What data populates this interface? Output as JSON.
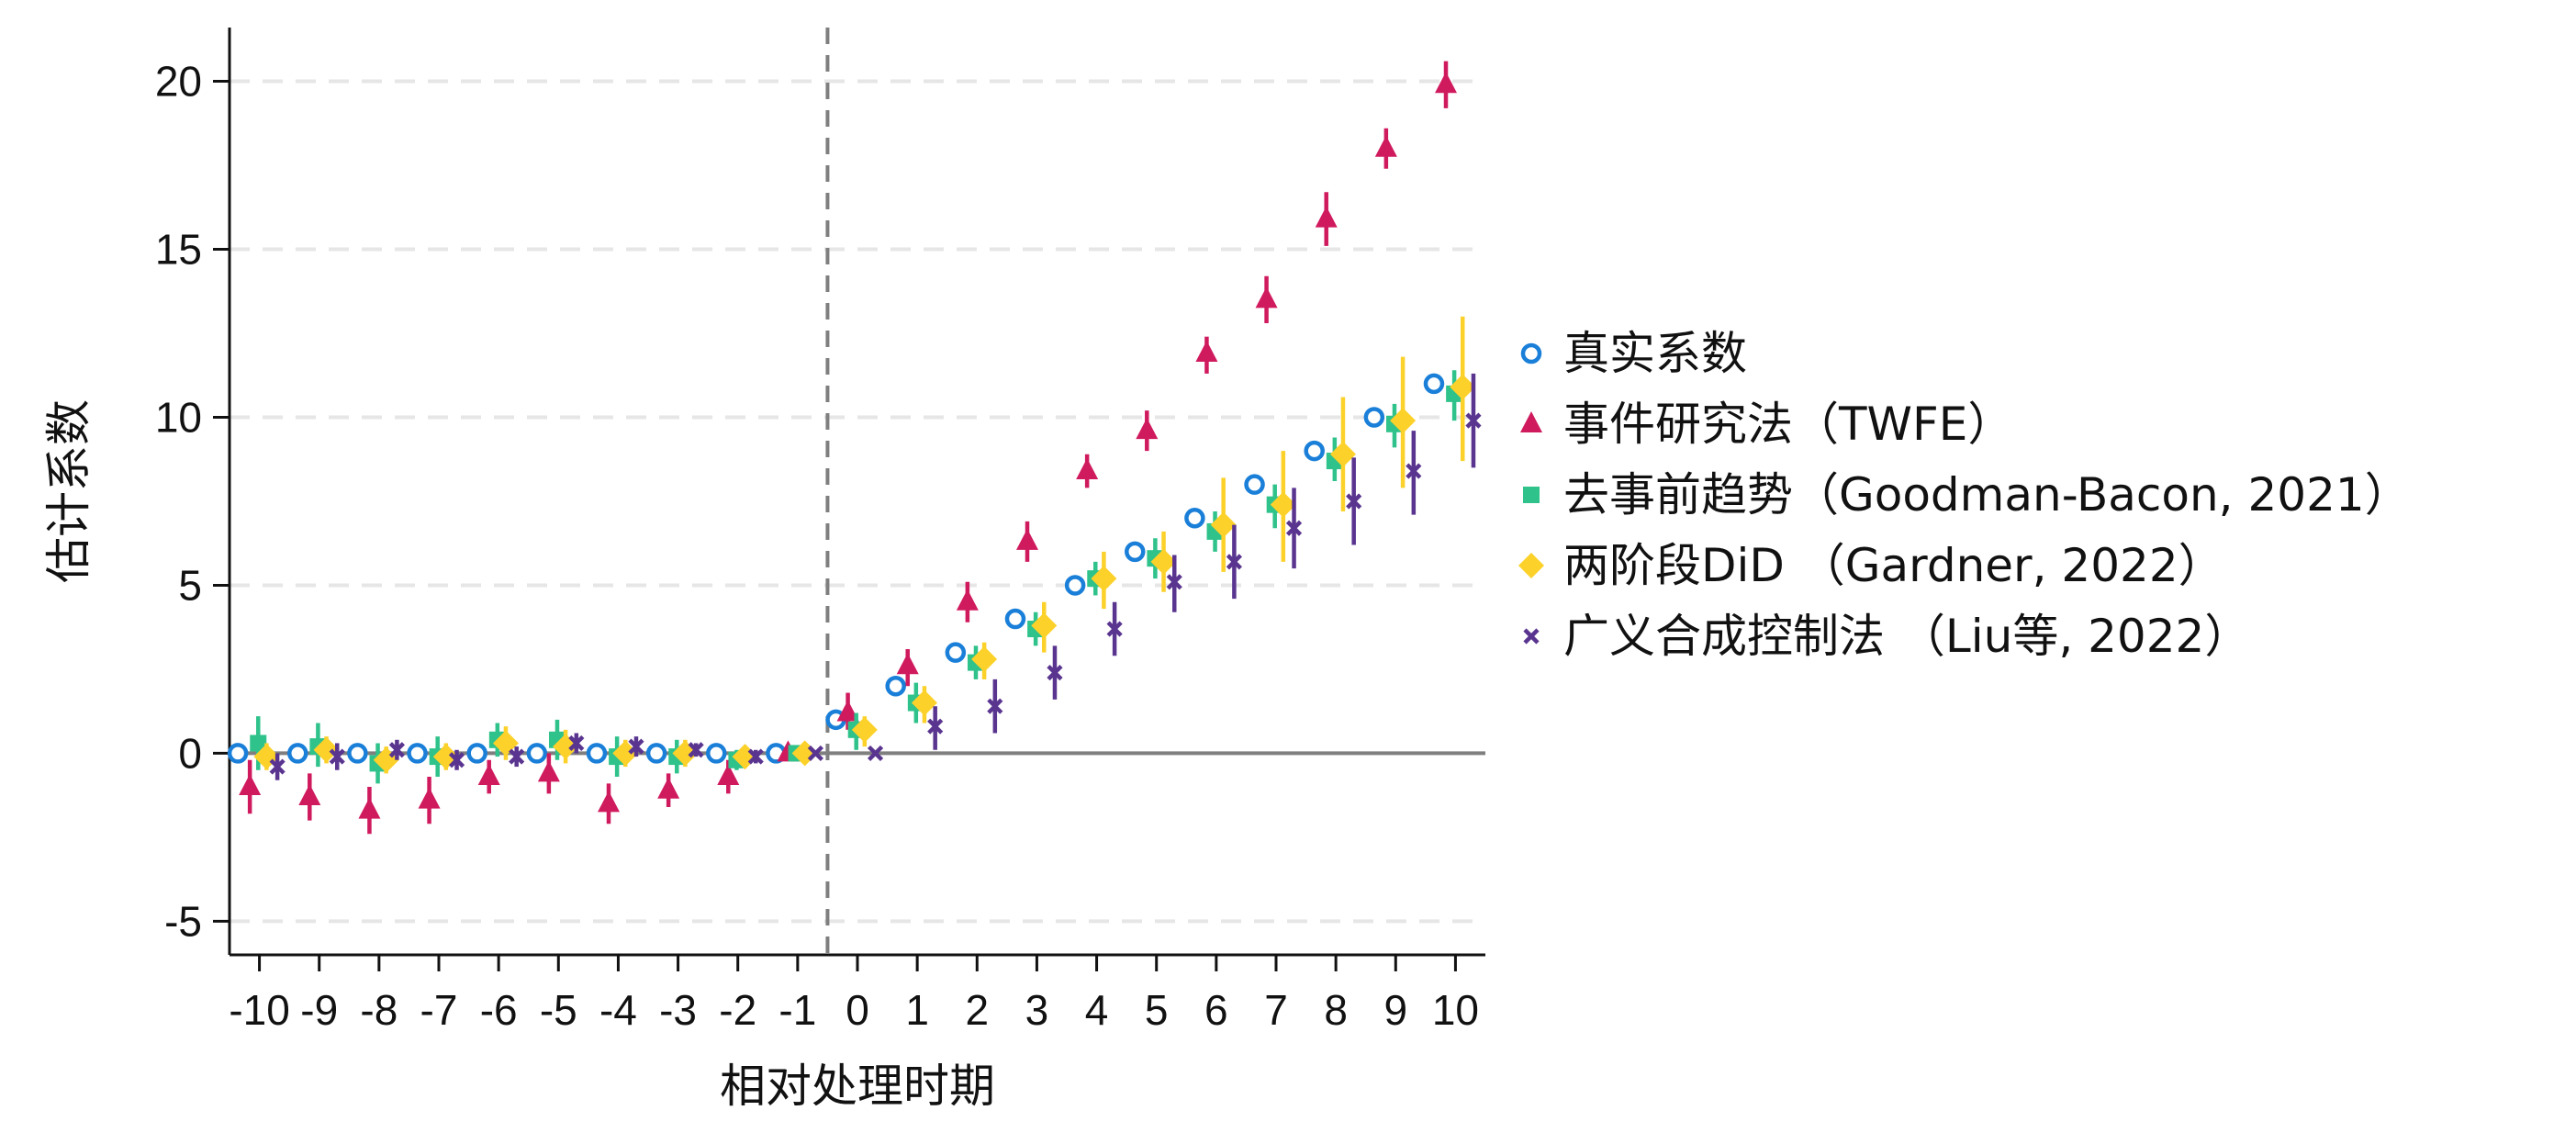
{
  "chart_data": {
    "type": "scatter",
    "xlabel": "相对处理时期",
    "ylabel": "估计系数",
    "x": [
      -10,
      -9,
      -8,
      -7,
      -6,
      -5,
      -4,
      -3,
      -2,
      -1,
      0,
      1,
      2,
      3,
      4,
      5,
      6,
      7,
      8,
      9,
      10
    ],
    "x_tick_labels": [
      "-10",
      "-9",
      "-8",
      "-7",
      "-6",
      "-5",
      "-4",
      "-3",
      "-2",
      "-1",
      "0",
      "1",
      "2",
      "3",
      "4",
      "5",
      "6",
      "7",
      "8",
      "9",
      "10"
    ],
    "y_ticks": [
      -5,
      0,
      5,
      10,
      15,
      20
    ],
    "y_tick_labels": [
      "-5",
      "0",
      "5",
      "10",
      "15",
      "20"
    ],
    "ylim": [
      -6,
      21.6
    ],
    "xlim": [
      -10.5,
      10.5
    ],
    "treatment_line_x": -0.5,
    "reference_line_y": 0,
    "grid": "horizontal dashed",
    "legend_position": "right",
    "series": [
      {
        "name": "真实系数",
        "marker": "circle-open",
        "color": "#1a7fd8",
        "values": [
          0,
          0,
          0,
          0,
          0,
          0,
          0,
          0,
          0,
          0,
          1,
          2,
          3,
          4,
          5,
          6,
          7,
          8,
          9,
          10,
          11
        ],
        "ci_low": null,
        "ci_high": null
      },
      {
        "name": "事件研究法（TWFE）",
        "marker": "triangle",
        "color": "#d01a5e",
        "values": [
          -1.0,
          -1.3,
          -1.7,
          -1.4,
          -0.7,
          -0.6,
          -1.5,
          -1.1,
          -0.7,
          0.0,
          1.2,
          2.6,
          4.5,
          6.3,
          8.4,
          9.6,
          11.9,
          13.5,
          15.9,
          18.0,
          19.9
        ],
        "ci_low": [
          -1.8,
          -2.0,
          -2.4,
          -2.1,
          -1.2,
          -1.2,
          -2.1,
          -1.6,
          -1.2,
          0.0,
          0.7,
          2.0,
          3.9,
          5.7,
          7.9,
          9.0,
          11.3,
          12.8,
          15.1,
          17.4,
          19.2
        ],
        "ci_high": [
          -0.2,
          -0.6,
          -1.0,
          -0.7,
          -0.2,
          0.0,
          -0.9,
          -0.6,
          -0.2,
          0.0,
          1.8,
          3.1,
          5.1,
          6.9,
          8.9,
          10.2,
          12.4,
          14.2,
          16.7,
          18.6,
          20.6
        ]
      },
      {
        "name": "去事前趋势（Goodman-Bacon, 2021）",
        "marker": "square",
        "color": "#2fc28b",
        "values": [
          0.3,
          0.2,
          -0.3,
          -0.1,
          0.4,
          0.4,
          -0.1,
          -0.1,
          -0.2,
          0.0,
          0.7,
          1.5,
          2.7,
          3.7,
          5.2,
          5.8,
          6.6,
          7.4,
          8.7,
          9.8,
          10.7
        ],
        "ci_low": [
          -0.5,
          -0.4,
          -0.9,
          -0.7,
          -0.1,
          -0.2,
          -0.7,
          -0.6,
          -0.5,
          0.0,
          0.1,
          0.9,
          2.2,
          3.2,
          4.7,
          5.2,
          6.0,
          6.7,
          8.1,
          9.1,
          9.9
        ],
        "ci_high": [
          1.1,
          0.9,
          0.3,
          0.5,
          0.9,
          1.0,
          0.5,
          0.4,
          0.1,
          0.0,
          1.2,
          2.1,
          3.2,
          4.2,
          5.7,
          6.4,
          7.2,
          8.0,
          9.4,
          10.4,
          11.4
        ]
      },
      {
        "name": "两阶段DiD （Gardner, 2022）",
        "marker": "diamond",
        "color": "#fcd12a",
        "values": [
          -0.1,
          0.1,
          -0.2,
          -0.1,
          0.3,
          0.2,
          0.0,
          0.0,
          -0.1,
          0.0,
          0.7,
          1.5,
          2.8,
          3.8,
          5.2,
          5.7,
          6.8,
          7.4,
          8.9,
          9.9,
          10.9
        ],
        "ci_low": [
          -0.5,
          -0.3,
          -0.6,
          -0.5,
          -0.2,
          -0.3,
          -0.4,
          -0.4,
          -0.4,
          0.0,
          0.2,
          0.9,
          2.2,
          3.0,
          4.3,
          4.8,
          5.4,
          5.7,
          7.2,
          7.9,
          8.7
        ],
        "ci_high": [
          0.3,
          0.5,
          0.2,
          0.3,
          0.8,
          0.7,
          0.4,
          0.4,
          0.2,
          0.0,
          1.1,
          2.0,
          3.3,
          4.5,
          6.0,
          6.6,
          8.2,
          9.0,
          10.6,
          11.8,
          13.0
        ]
      },
      {
        "name": "广义合成控制法 （Liu等, 2022）",
        "marker": "x",
        "color": "#5a3590",
        "values": [
          -0.4,
          -0.1,
          0.1,
          -0.2,
          -0.1,
          0.3,
          0.2,
          0.1,
          -0.1,
          0.0,
          0.0,
          0.8,
          1.4,
          2.4,
          3.7,
          5.1,
          5.7,
          6.7,
          7.5,
          8.4,
          9.9
        ],
        "ci_low": [
          -0.8,
          -0.5,
          -0.2,
          -0.5,
          -0.4,
          0.0,
          -0.1,
          -0.1,
          -0.3,
          0.0,
          0.0,
          0.1,
          0.6,
          1.6,
          2.9,
          4.2,
          4.6,
          5.5,
          6.2,
          7.1,
          8.5
        ],
        "ci_high": [
          0.0,
          0.3,
          0.4,
          0.1,
          0.2,
          0.6,
          0.5,
          0.3,
          0.1,
          0.0,
          0.0,
          1.4,
          2.2,
          3.2,
          4.5,
          5.9,
          6.8,
          7.9,
          8.8,
          9.6,
          11.3
        ]
      }
    ]
  }
}
